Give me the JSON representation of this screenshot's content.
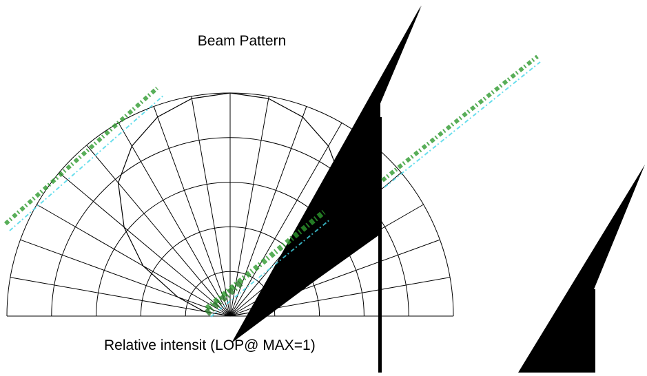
{
  "chart_data": {
    "type": "polar",
    "title": "Beam Pattern",
    "xlabel": "Relative intensit (LOP@ MAX=1)",
    "angle_range_deg": [
      -90,
      90
    ],
    "angle_grid_step_deg": 10,
    "radius_range": [
      0,
      1
    ],
    "radius_grid_step": 0.2,
    "grid": true,
    "series": [
      {
        "angles_deg": [
          -90,
          -80,
          -70,
          -60,
          -50,
          -40,
          -30,
          -20,
          -10,
          0,
          10,
          20,
          30,
          40,
          50,
          60,
          70,
          80,
          90
        ],
        "values": [
          0,
          0.12,
          0.25,
          0.45,
          0.62,
          0.78,
          0.88,
          0.95,
          0.99,
          1.0,
          0.99,
          0.95,
          0.88,
          0.78,
          0.62,
          0.45,
          0.25,
          0.12,
          0
        ],
        "color": "#000000"
      }
    ]
  },
  "colors": {
    "grid": "#000000",
    "artifact": "#000000",
    "noise_green": "#2f9a2f",
    "noise_cyan": "#43d6e8"
  }
}
